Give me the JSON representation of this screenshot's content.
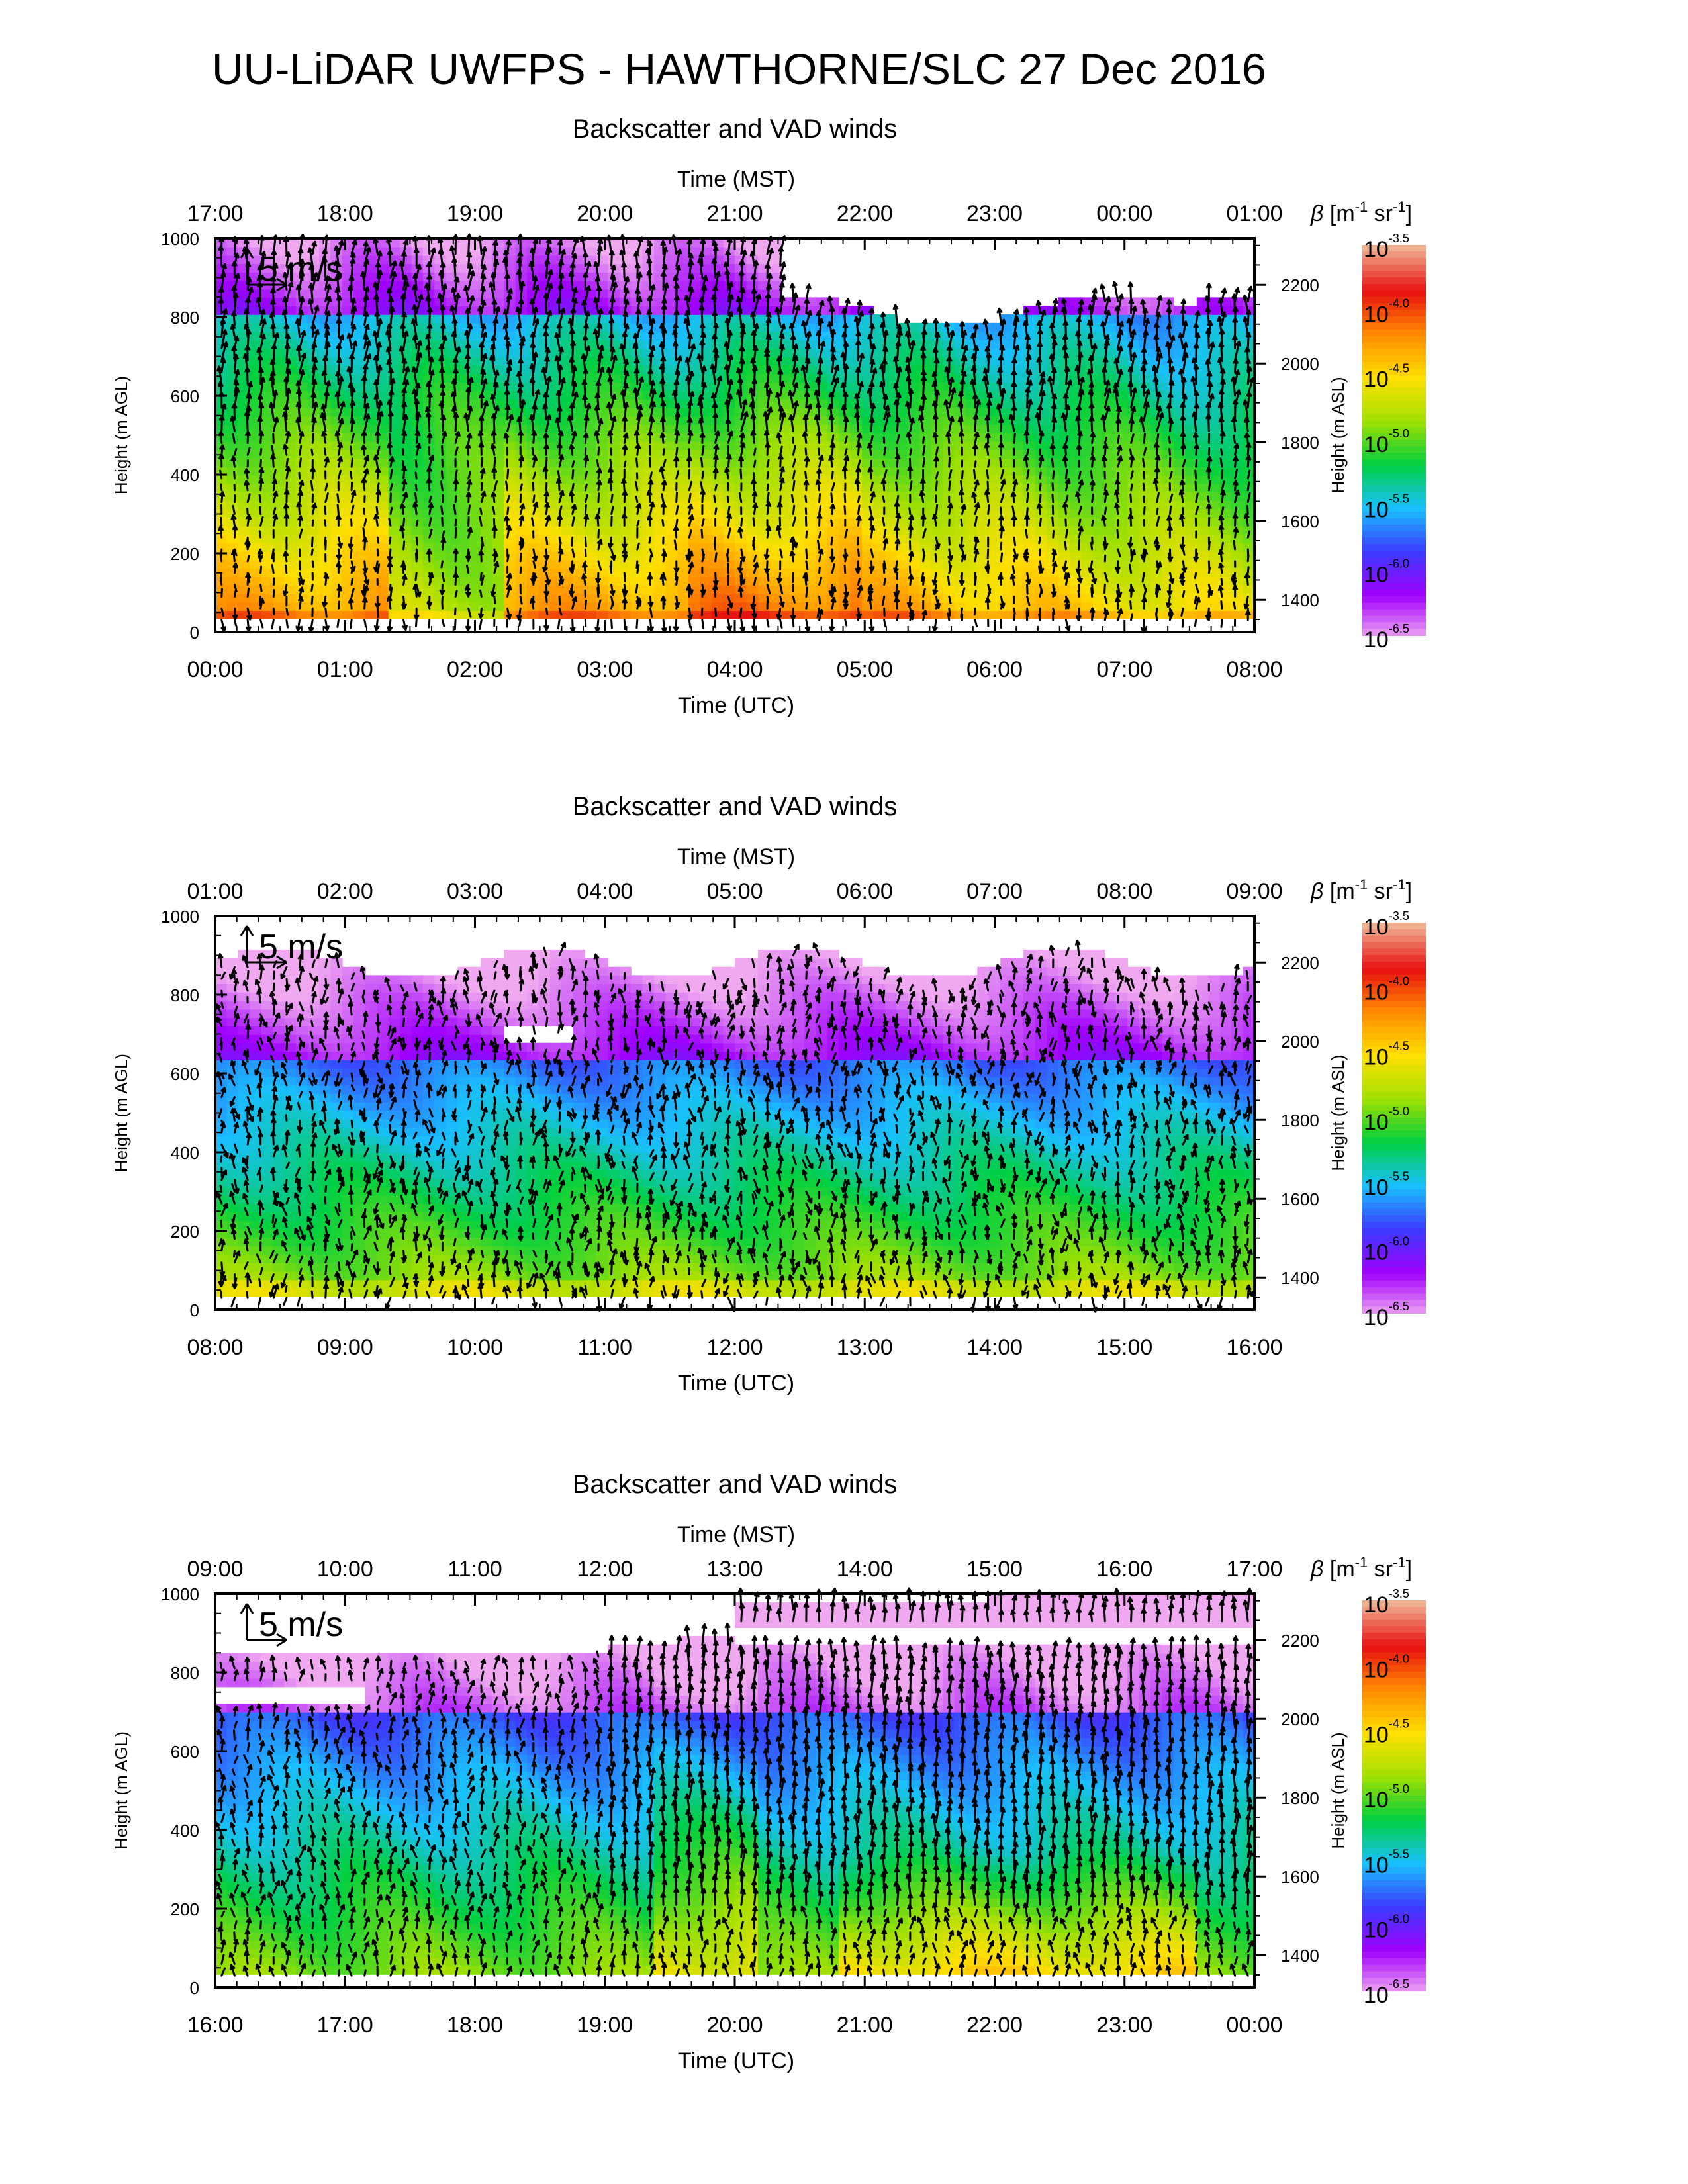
{
  "page": {
    "title": "UU-LiDAR UWFPS - HAWTHORNE/SLC 27 Dec 2016"
  },
  "colors": {
    "axis": "#000000",
    "arrow": "#000000",
    "missing": "#ffffff",
    "colormap": [
      "#f0a8f0",
      "#a000ff",
      "#3b3bff",
      "#19c0ff",
      "#00d040",
      "#a0e000",
      "#ffe000",
      "#ff8c00",
      "#e81010",
      "#f0b090"
    ]
  },
  "chart_data": [
    {
      "type": "heatmap",
      "title": "Backscatter and VAD winds",
      "top_axis_label": "Time (MST)",
      "top_ticks": [
        "17:00",
        "18:00",
        "19:00",
        "20:00",
        "21:00",
        "22:00",
        "23:00",
        "00:00",
        "01:00"
      ],
      "xlabel": "Time (UTC)",
      "x_ticks": [
        "00:00",
        "01:00",
        "02:00",
        "03:00",
        "04:00",
        "05:00",
        "06:00",
        "07:00",
        "08:00"
      ],
      "ylabel": "Height (m AGL)",
      "ylim": [
        0,
        1000
      ],
      "y_ticks": [
        "0",
        "200",
        "400",
        "600",
        "800",
        "1000"
      ],
      "right_axis_label": "Height (m ASL)",
      "right_ticks": [
        "1400",
        "1600",
        "1800",
        "2000",
        "2200"
      ],
      "scale_label": "5 m/s",
      "colorbar": {
        "label": "β [m-1 sr-1]",
        "base": "10",
        "exponents": [
          "-3.5",
          "-4.0",
          "-4.5",
          "-5.0",
          "-5.5",
          "-6.0",
          "-6.5"
        ]
      },
      "wind_arrows": "VAD winds, mostly northerly/southerly profiles every ~10 min"
    },
    {
      "type": "heatmap",
      "title": "Backscatter and VAD winds",
      "top_axis_label": "Time (MST)",
      "top_ticks": [
        "01:00",
        "02:00",
        "03:00",
        "04:00",
        "05:00",
        "06:00",
        "07:00",
        "08:00",
        "09:00"
      ],
      "xlabel": "Time (UTC)",
      "x_ticks": [
        "08:00",
        "09:00",
        "10:00",
        "11:00",
        "12:00",
        "13:00",
        "14:00",
        "15:00",
        "16:00"
      ],
      "ylabel": "Height (m AGL)",
      "ylim": [
        0,
        1000
      ],
      "y_ticks": [
        "0",
        "200",
        "400",
        "600",
        "800",
        "1000"
      ],
      "right_axis_label": "Height (m ASL)",
      "right_ticks": [
        "1400",
        "1600",
        "1800",
        "2000",
        "2200"
      ],
      "scale_label": "5 m/s",
      "colorbar": {
        "label": "β [m-1 sr-1]",
        "base": "10",
        "exponents": [
          "-3.5",
          "-4.0",
          "-4.5",
          "-5.0",
          "-5.5",
          "-6.0",
          "-6.5"
        ]
      },
      "wind_arrows": "VAD winds, weak and variable aloft"
    },
    {
      "type": "heatmap",
      "title": "Backscatter and VAD winds",
      "top_axis_label": "Time (MST)",
      "top_ticks": [
        "09:00",
        "10:00",
        "11:00",
        "12:00",
        "13:00",
        "14:00",
        "15:00",
        "16:00",
        "17:00"
      ],
      "xlabel": "Time (UTC)",
      "x_ticks": [
        "16:00",
        "17:00",
        "18:00",
        "19:00",
        "20:00",
        "21:00",
        "22:00",
        "23:00",
        "00:00"
      ],
      "ylabel": "Height (m AGL)",
      "ylim": [
        0,
        1000
      ],
      "y_ticks": [
        "0",
        "200",
        "400",
        "600",
        "800",
        "1000"
      ],
      "right_axis_label": "Height (m ASL)",
      "right_ticks": [
        "1400",
        "1600",
        "1800",
        "2000",
        "2200"
      ],
      "scale_label": "5 m/s",
      "colorbar": {
        "label": "β [m-1 sr-1]",
        "base": "10",
        "exponents": [
          "-3.5",
          "-4.0",
          "-4.5",
          "-5.0",
          "-5.5",
          "-6.0",
          "-6.5"
        ]
      },
      "wind_arrows": "VAD winds, strong northerlies from 19:00 UTC onward"
    }
  ]
}
